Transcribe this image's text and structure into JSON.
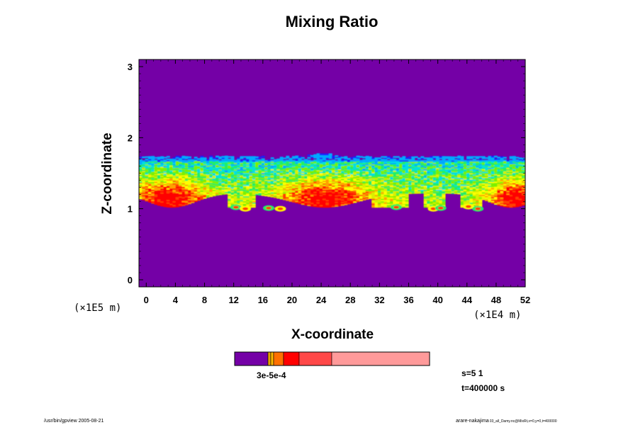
{
  "chart_data": {
    "type": "heatmap",
    "title": "Mixing Ratio",
    "xlabel": "X-coordinate",
    "ylabel": "Z-coordinate",
    "x_unit": "(×1E4 m)",
    "y_unit": "(×1E5 m)",
    "xlim": [
      -1,
      52
    ],
    "ylim": [
      -0.1,
      3.1
    ],
    "x_ticks": [
      "0",
      "4",
      "8",
      "12",
      "16",
      "20",
      "24",
      "28",
      "32",
      "36",
      "40",
      "44",
      "48",
      "52"
    ],
    "x_tick_values": [
      0,
      4,
      8,
      12,
      16,
      20,
      24,
      28,
      32,
      36,
      40,
      44,
      48,
      52
    ],
    "y_ticks": [
      "0",
      "1",
      "2",
      "3"
    ],
    "y_tick_values": [
      0,
      1,
      2,
      3
    ],
    "background_color": "#7400a6",
    "field_description": "cloud layer between z≈1.0 and z≈1.75, highest values near z≈1.0–1.3",
    "colorbar": {
      "colors": [
        "#7400a6",
        "#e8a200",
        "#ffb800",
        "#ff7000",
        "#ff0000",
        "#ff4848",
        "#ff9a9a"
      ],
      "label": "3e-5e-4"
    },
    "info": {
      "step": "s=5 1",
      "time": "t=400000 s"
    }
  },
  "footer": {
    "left": "/usr/bin/gpview 2005-08-21",
    "right_main": "arare-nakajima",
    "right_small": "03_all_Damy.nc@MixRt,x=0,y=0,t=400000"
  }
}
